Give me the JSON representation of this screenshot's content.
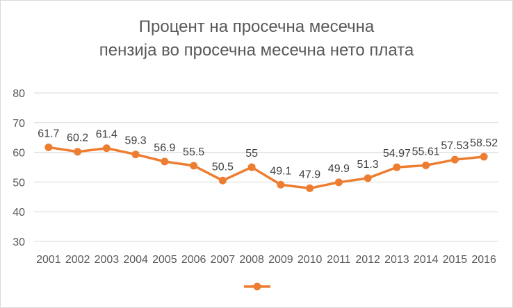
{
  "chart_data": {
    "type": "line",
    "title_lines": [
      "Процент на просечна месечна",
      "пензија во просечна месечна нето плата"
    ],
    "xlabel": "",
    "ylabel": "",
    "categories": [
      "2001",
      "2002",
      "2003",
      "2004",
      "2005",
      "2006",
      "2007",
      "2008",
      "2009",
      "2010",
      "2011",
      "2012",
      "2013",
      "2014",
      "2015",
      "2016"
    ],
    "series": [
      {
        "values": [
          61.7,
          60.2,
          61.4,
          59.3,
          56.9,
          55.5,
          50.5,
          55,
          49.1,
          47.9,
          49.9,
          51.3,
          54.97,
          55.61,
          57.53,
          58.52
        ],
        "labels": [
          "61.7",
          "60.2",
          "61.4",
          "59.3",
          "56.9",
          "55.5",
          "50.5",
          "55",
          "49.1",
          "47.9",
          "49.9",
          "51.3",
          "54.97",
          "55.61",
          "57.53",
          "58.52"
        ],
        "color": "#ED7D31"
      }
    ],
    "ylim": [
      30,
      80
    ],
    "yticks": [
      30,
      40,
      50,
      60,
      70,
      80
    ],
    "grid": true,
    "legend": "bottom",
    "gridline_color": "#d9d9d9",
    "text_color": "#595959"
  }
}
